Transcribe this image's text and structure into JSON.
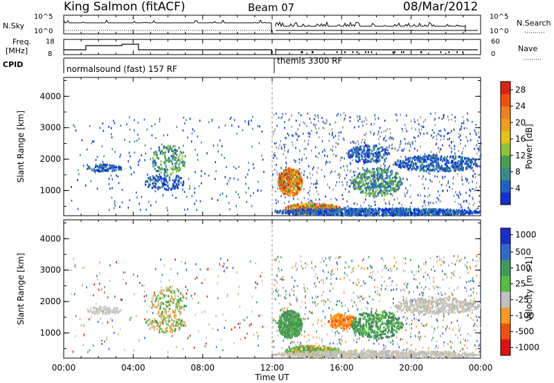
{
  "header": {
    "title": "King Salmon (fitACF)",
    "beam": "Beam 07",
    "date": "08/Mar/2012"
  },
  "top_panels": {
    "nsky_label": "N.Sky",
    "nsky_ticks": [
      "10^5",
      "10^0"
    ],
    "nsearch_label": "N.Search",
    "nsearch_ticks": [
      "10^5",
      "10^0"
    ],
    "freq_label": "Freq.",
    "freq_unit": "[MHz]",
    "freq_ticks": [
      "18",
      "8"
    ],
    "nave_label": "Nave",
    "nave_ticks": [
      "60",
      "0"
    ],
    "cpid_label": "CPID",
    "cpid_segments": [
      "normalsound (fast) 157 RF",
      "themis 3300 RF"
    ]
  },
  "chart_data": [
    {
      "type": "heatmap",
      "title": "",
      "xlabel": "",
      "ylabel": "Slant Range [km]",
      "y_ticks": [
        "1000",
        "2000",
        "3000",
        "4000"
      ],
      "yticks_values": [
        1000,
        2000,
        3000,
        4000
      ],
      "ylim": [
        200,
        4600
      ],
      "xlim": [
        0,
        24
      ],
      "colorbar": {
        "label": "Power [dB]",
        "ticks": [
          "4",
          "8",
          "12",
          "16",
          "20",
          "24",
          "28"
        ],
        "range": [
          0,
          30
        ],
        "colors": [
          "#1030d8",
          "#2060c8",
          "#3b8a8a",
          "#47a04a",
          "#8cc43a",
          "#e7c21a",
          "#f0a018",
          "#f08018",
          "#f05010",
          "#e02010"
        ]
      },
      "description_of_patches": [
        {
          "t": [
            2.0,
            3.5
          ],
          "r": [
            1600,
            1900
          ],
          "level": 8
        },
        {
          "t": [
            5.0,
            7.0
          ],
          "r": [
            1200,
            2600
          ],
          "level": 10
        },
        {
          "t": [
            12.5,
            13.6
          ],
          "r": [
            800,
            1800
          ],
          "level": 24
        },
        {
          "t": [
            13.0,
            16.0
          ],
          "r": [
            200,
            700
          ],
          "level": 26
        },
        {
          "t": [
            16.5,
            19.5
          ],
          "r": [
            1000,
            2400
          ],
          "level": 14
        },
        {
          "t": [
            19.5,
            24.0
          ],
          "r": [
            1400,
            2400
          ],
          "level": 6
        }
      ]
    },
    {
      "type": "heatmap",
      "title": "",
      "xlabel": "Time UT",
      "ylabel": "Slant Range [km]",
      "y_ticks": [
        "1000",
        "2000",
        "3000",
        "4000"
      ],
      "yticks_values": [
        1000,
        2000,
        3000,
        4000
      ],
      "ylim": [
        200,
        4600
      ],
      "xlim": [
        0,
        24
      ],
      "x_ticks": [
        "00:00",
        "04:00",
        "08:00",
        "12:00",
        "16:00",
        "20:00",
        "00:00"
      ],
      "xticks_values": [
        0,
        4,
        8,
        12,
        16,
        20,
        24
      ],
      "colorbar": {
        "label": "Velocity [m s-1]",
        "ticks": [
          "1000",
          "500",
          "100",
          "25",
          "-25",
          "-100",
          "-500",
          "-1000"
        ],
        "colors": [
          "#1a2ed0",
          "#2f6ac8",
          "#3f9a5a",
          "#55c040",
          "#c0c0c0",
          "#ff9a20",
          "#f05010",
          "#e01010"
        ]
      }
    }
  ]
}
